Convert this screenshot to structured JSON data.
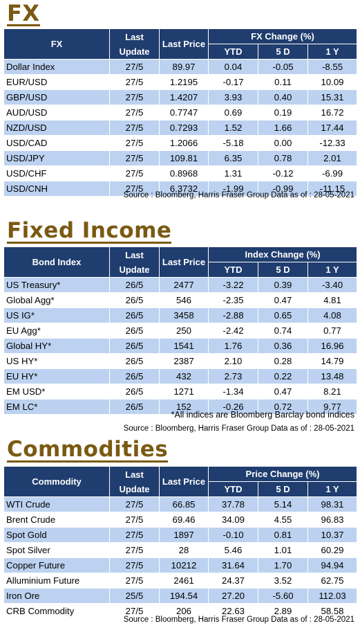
{
  "fx": {
    "title": "FX",
    "header": {
      "name": "FX",
      "last_update": "Last Update",
      "last_price": "Last Price",
      "group": "FX Change (%)",
      "ytd": "YTD",
      "d5": "5 D",
      "y1": "1 Y"
    },
    "rows": [
      {
        "name": "Dollar Index",
        "upd": "27/5",
        "price": "89.97",
        "ytd": "0.04",
        "d5": "-0.05",
        "y1": "-8.55"
      },
      {
        "name": "EUR/USD",
        "upd": "27/5",
        "price": "1.2195",
        "ytd": "-0.17",
        "d5": "0.11",
        "y1": "10.09"
      },
      {
        "name": "GBP/USD",
        "upd": "27/5",
        "price": "1.4207",
        "ytd": "3.93",
        "d5": "0.40",
        "y1": "15.31"
      },
      {
        "name": "AUD/USD",
        "upd": "27/5",
        "price": "0.7747",
        "ytd": "0.69",
        "d5": "0.19",
        "y1": "16.72"
      },
      {
        "name": "NZD/USD",
        "upd": "27/5",
        "price": "0.7293",
        "ytd": "1.52",
        "d5": "1.66",
        "y1": "17.44"
      },
      {
        "name": "USD/CAD",
        "upd": "27/5",
        "price": "1.2066",
        "ytd": "-5.18",
        "d5": "0.00",
        "y1": "-12.33"
      },
      {
        "name": "USD/JPY",
        "upd": "27/5",
        "price": "109.81",
        "ytd": "6.35",
        "d5": "0.78",
        "y1": "2.01"
      },
      {
        "name": "USD/CHF",
        "upd": "27/5",
        "price": "0.8968",
        "ytd": "1.31",
        "d5": "-0.12",
        "y1": "-6.99"
      },
      {
        "name": "USD/CNH",
        "upd": "27/5",
        "price": "6.3732",
        "ytd": "-1.99",
        "d5": "-0.99",
        "y1": "-11.15"
      }
    ],
    "source": "Source : Bloomberg, Harris Fraser Group Data as of : 28-05-2021"
  },
  "fixed_income": {
    "title": "Fixed Income",
    "header": {
      "name": "Bond Index",
      "last_update": "Last Update",
      "last_price": "Last Price",
      "group": "Index Change (%)",
      "ytd": "YTD",
      "d5": "5 D",
      "y1": "1 Y"
    },
    "rows": [
      {
        "name": "US Treasury*",
        "upd": "26/5",
        "price": "2477",
        "ytd": "-3.22",
        "d5": "0.39",
        "y1": "-3.40"
      },
      {
        "name": "Global Agg*",
        "upd": "26/5",
        "price": "546",
        "ytd": "-2.35",
        "d5": "0.47",
        "y1": "4.81"
      },
      {
        "name": "US IG*",
        "upd": "26/5",
        "price": "3458",
        "ytd": "-2.88",
        "d5": "0.65",
        "y1": "4.08"
      },
      {
        "name": "EU Agg*",
        "upd": "26/5",
        "price": "250",
        "ytd": "-2.42",
        "d5": "0.74",
        "y1": "0.77"
      },
      {
        "name": "Global HY*",
        "upd": "26/5",
        "price": "1541",
        "ytd": "1.76",
        "d5": "0.36",
        "y1": "16.96"
      },
      {
        "name": "US HY*",
        "upd": "26/5",
        "price": "2387",
        "ytd": "2.10",
        "d5": "0.28",
        "y1": "14.79"
      },
      {
        "name": "EU HY*",
        "upd": "26/5",
        "price": "432",
        "ytd": "2.73",
        "d5": "0.22",
        "y1": "13.48"
      },
      {
        "name": "EM USD*",
        "upd": "26/5",
        "price": "1271",
        "ytd": "-1.34",
        "d5": "0.47",
        "y1": "8.21"
      },
      {
        "name": "EM LC*",
        "upd": "26/5",
        "price": "152",
        "ytd": "-0.26",
        "d5": "0.72",
        "y1": "9.77"
      }
    ],
    "note": "*All indices are Bloomberg Barclay bond indices",
    "source": "Source : Bloomberg, Harris Fraser Group Data as of : 28-05-2021"
  },
  "commodities": {
    "title": "Commodities",
    "header": {
      "name": "Commodity",
      "last_update": "Last Update",
      "last_price": "Last Price",
      "group": "Price Change (%)",
      "ytd": "YTD",
      "d5": "5 D",
      "y1": "1 Y"
    },
    "rows": [
      {
        "name": "WTI Crude",
        "upd": "27/5",
        "price": "66.85",
        "ytd": "37.78",
        "d5": "5.14",
        "y1": "98.31"
      },
      {
        "name": "Brent Crude",
        "upd": "27/5",
        "price": "69.46",
        "ytd": "34.09",
        "d5": "4.55",
        "y1": "96.83"
      },
      {
        "name": "Spot Gold",
        "upd": "27/5",
        "price": "1897",
        "ytd": "-0.10",
        "d5": "0.81",
        "y1": "10.37"
      },
      {
        "name": "Spot Silver",
        "upd": "27/5",
        "price": "28",
        "ytd": "5.46",
        "d5": "1.01",
        "y1": "60.29"
      },
      {
        "name": "Copper Future",
        "upd": "27/5",
        "price": "10212",
        "ytd": "31.64",
        "d5": "1.70",
        "y1": "94.94"
      },
      {
        "name": "Alluminium Future",
        "upd": "27/5",
        "price": "2461",
        "ytd": "24.37",
        "d5": "3.52",
        "y1": "62.75"
      },
      {
        "name": "Iron Ore",
        "upd": "25/5",
        "price": "194.54",
        "ytd": "27.20",
        "d5": "-5.60",
        "y1": "112.03"
      },
      {
        "name": "CRB Commodity",
        "upd": "27/5",
        "price": "206",
        "ytd": "22.63",
        "d5": "2.89",
        "y1": "58.58"
      }
    ],
    "source": "Source : Bloomberg, Harris Fraser Group Data as of : 28-05-2021"
  }
}
